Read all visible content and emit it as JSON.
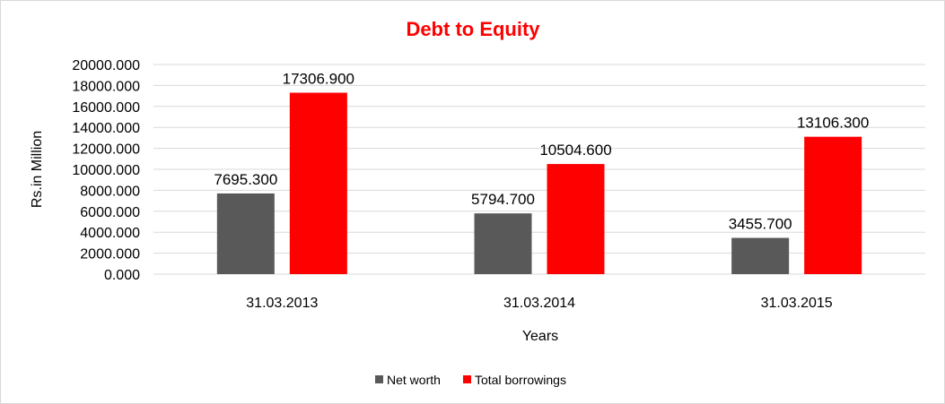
{
  "colors": {
    "title": "#ff0000",
    "gridline": "#d9d9d9",
    "background": "#ffffff"
  },
  "chart_data": {
    "type": "bar",
    "title": "Debt to Equity",
    "xlabel": "Years",
    "ylabel": "Rs.in Million",
    "categories": [
      "31.03.2013",
      "31.03.2014",
      "31.03.2015"
    ],
    "series": [
      {
        "name": "Net worth",
        "color": "#595959",
        "values": [
          7695.3,
          5794.7,
          3455.7
        ],
        "labels": [
          "7695.300",
          "5794.700",
          "3455.700"
        ]
      },
      {
        "name": "Total borrowings",
        "color": "#ff0000",
        "values": [
          17306.9,
          10504.6,
          13106.3
        ],
        "labels": [
          "17306.900",
          "10504.600",
          "13106.300"
        ]
      }
    ],
    "ylim": [
      0,
      20000
    ],
    "yticks": [
      {
        "value": 0,
        "label": "0.000"
      },
      {
        "value": 2000,
        "label": "2000.000"
      },
      {
        "value": 4000,
        "label": "4000.000"
      },
      {
        "value": 6000,
        "label": "6000.000"
      },
      {
        "value": 8000,
        "label": "8000.000"
      },
      {
        "value": 10000,
        "label": "10000.000"
      },
      {
        "value": 12000,
        "label": "12000.000"
      },
      {
        "value": 14000,
        "label": "14000.000"
      },
      {
        "value": 16000,
        "label": "16000.000"
      },
      {
        "value": 18000,
        "label": "18000.000"
      },
      {
        "value": 20000,
        "label": "20000.000"
      }
    ],
    "grid": true,
    "legend_position": "bottom"
  }
}
